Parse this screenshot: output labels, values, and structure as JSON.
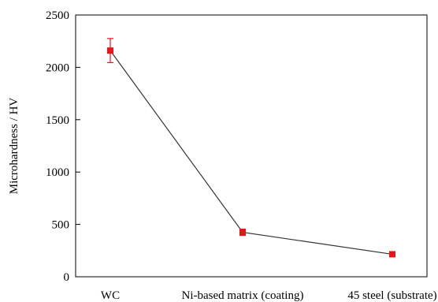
{
  "chart_data": {
    "type": "line",
    "title": "",
    "xlabel": "",
    "ylabel": "Microhardness / HV",
    "categories": [
      "WC",
      "Ni-based matrix (coating)",
      "45 steel (substrate)"
    ],
    "ylim": [
      0,
      2500
    ],
    "yticks": [
      0,
      500,
      1000,
      1500,
      2000,
      2500
    ],
    "grid": false,
    "series": [
      {
        "values": [
          2160,
          425,
          215
        ],
        "error": [
          115,
          30,
          10
        ],
        "color": "#e8141a",
        "line_color": "#333333"
      }
    ]
  }
}
